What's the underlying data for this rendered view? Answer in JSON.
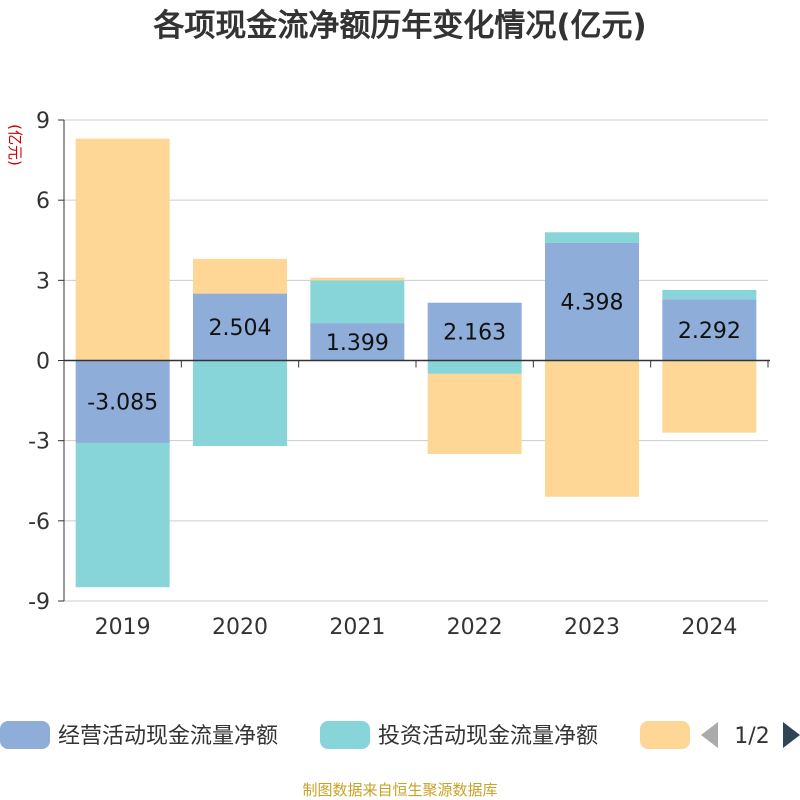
{
  "title": "各项现金流净额历年变化情况(亿元)",
  "source": "制图数据来自恒生聚源数据库",
  "legend_page": "1/2",
  "colors": {
    "operating": "#8eadd9",
    "investing": "#88d5d9",
    "financing": "#fed797",
    "axis": "#333333",
    "grid": "#cccccc",
    "unit": "#cc0000",
    "source": "#c9a227",
    "arrow_disabled": "#aaaaaa",
    "arrow_enabled": "#2f4554"
  },
  "chart_data": {
    "type": "bar",
    "stacked": true,
    "ylabel": "(亿元)",
    "ylim": [
      -9,
      9
    ],
    "yticks": [
      -9,
      -6,
      -3,
      0,
      3,
      6,
      9
    ],
    "grid": true,
    "legend_position": "bottom",
    "categories": [
      "2019",
      "2020",
      "2021",
      "2022",
      "2023",
      "2024"
    ],
    "series": [
      {
        "name": "经营活动现金流量净额",
        "values": [
          -3.085,
          2.504,
          1.399,
          2.163,
          4.398,
          2.292
        ],
        "labels": [
          "-3.085",
          "2.504",
          "1.399",
          "2.163",
          "4.398",
          "2.292"
        ]
      },
      {
        "name": "投资活动现金流量净额",
        "values": [
          -5.4,
          -3.2,
          1.6,
          -0.5,
          0.4,
          0.35
        ]
      },
      {
        "name": "",
        "values": [
          8.3,
          1.3,
          0.1,
          -3.0,
          -5.1,
          -2.7
        ]
      }
    ]
  }
}
